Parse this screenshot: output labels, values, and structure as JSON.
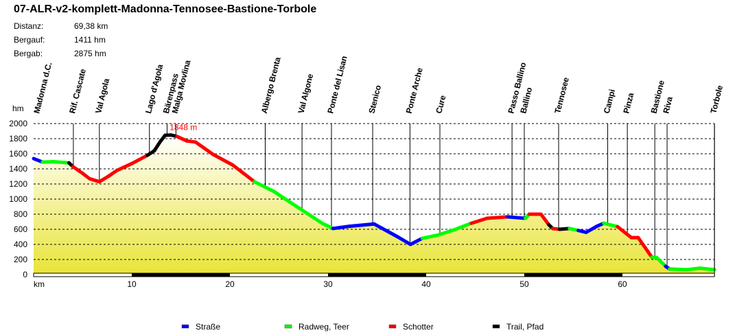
{
  "title": "07-ALR-v2-komplett-Madonna-Tennosee-Bastione-Torbole",
  "stats": [
    {
      "label": "Distanz:",
      "value": "69,38 km"
    },
    {
      "label": "Bergauf:",
      "value": " 1411 hm"
    },
    {
      "label": "Bergab:",
      "value": " 2875 hm"
    }
  ],
  "chart_data": {
    "type": "area",
    "ylabel": "hm",
    "xlabel": "km",
    "xlim": [
      0,
      69.38
    ],
    "ylim": [
      0,
      2000
    ],
    "yticks": [
      0,
      200,
      400,
      600,
      800,
      1000,
      1200,
      1400,
      1600,
      1800,
      2000
    ],
    "xticks": [
      10,
      20,
      30,
      40,
      50,
      60
    ],
    "grid": "horizontal dashed",
    "max_label": "1848 m",
    "max_point": [
      14.0,
      1848
    ],
    "surface_colors": {
      "strasse": "#0000ff",
      "radweg": "#00ff00",
      "schotter": "#ff0000",
      "trail": "#000000"
    },
    "legend": [
      {
        "key": "strasse",
        "label": "Straße"
      },
      {
        "key": "radweg",
        "label": "Radweg, Teer"
      },
      {
        "key": "schotter",
        "label": "Schotter"
      },
      {
        "key": "trail",
        "label": "Trail, Pfad"
      }
    ],
    "legend_placement": "bottom",
    "profile": [
      [
        0,
        1536,
        "strasse"
      ],
      [
        0.9,
        1490,
        "radweg"
      ],
      [
        2.0,
        1495,
        "radweg"
      ],
      [
        3.6,
        1480,
        "trail"
      ],
      [
        4.0,
        1430,
        "schotter"
      ],
      [
        5.0,
        1340,
        "schotter"
      ],
      [
        5.7,
        1270,
        "schotter"
      ],
      [
        6.7,
        1230,
        "schotter"
      ],
      [
        7.6,
        1300,
        "schotter"
      ],
      [
        8.5,
        1380,
        "schotter"
      ],
      [
        10.0,
        1470,
        "schotter"
      ],
      [
        11.6,
        1580,
        "trail"
      ],
      [
        12.3,
        1640,
        "trail"
      ],
      [
        12.9,
        1760,
        "trail"
      ],
      [
        13.4,
        1845,
        "trail"
      ],
      [
        14.0,
        1848,
        "trail"
      ],
      [
        14.6,
        1830,
        "schotter"
      ],
      [
        15.6,
        1770,
        "schotter"
      ],
      [
        16.5,
        1755,
        "schotter"
      ],
      [
        18.3,
        1590,
        "schotter"
      ],
      [
        20.3,
        1450,
        "schotter"
      ],
      [
        22.5,
        1230,
        "radweg"
      ],
      [
        24.5,
        1100,
        "radweg"
      ],
      [
        26.7,
        910,
        "radweg"
      ],
      [
        29.4,
        680,
        "radweg"
      ],
      [
        30.5,
        610,
        "strasse"
      ],
      [
        32.2,
        640,
        "strasse"
      ],
      [
        34.7,
        670,
        "strasse"
      ],
      [
        37.1,
        500,
        "strasse"
      ],
      [
        38.4,
        400,
        "strasse"
      ],
      [
        39.6,
        480,
        "radweg"
      ],
      [
        41.3,
        527,
        "radweg"
      ],
      [
        43.0,
        600,
        "radweg"
      ],
      [
        44.6,
        680,
        "schotter"
      ],
      [
        46.2,
        745,
        "schotter"
      ],
      [
        48.3,
        765,
        "strasse"
      ],
      [
        50.1,
        745,
        "radweg"
      ],
      [
        50.5,
        800,
        "schotter"
      ],
      [
        51.7,
        800,
        "schotter"
      ],
      [
        52.5,
        660,
        "trail"
      ],
      [
        52.9,
        610,
        "schotter"
      ],
      [
        53.6,
        600,
        "trail"
      ],
      [
        54.6,
        610,
        "radweg"
      ],
      [
        55.5,
        585,
        "strasse"
      ],
      [
        56.3,
        560,
        "strasse"
      ],
      [
        57.4,
        640,
        "strasse"
      ],
      [
        58.1,
        680,
        "radweg"
      ],
      [
        59.5,
        635,
        "schotter"
      ],
      [
        60.9,
        490,
        "schotter"
      ],
      [
        61.6,
        490,
        "schotter"
      ],
      [
        63.0,
        230,
        "radweg"
      ],
      [
        63.5,
        225,
        "radweg"
      ],
      [
        64.4,
        110,
        "strasse"
      ],
      [
        64.8,
        75,
        "radweg"
      ],
      [
        66.5,
        65,
        "radweg"
      ],
      [
        67.9,
        85,
        "radweg"
      ],
      [
        69.38,
        65,
        "radweg"
      ]
    ],
    "waypoints": [
      {
        "name": "Madonna d.C.",
        "km": 0
      },
      {
        "name": "Rif. Cascate",
        "km": 4.05
      },
      {
        "name": "Val Agola",
        "km": 6.7
      },
      {
        "name": "Lago d'Agola",
        "km": 11.8
      },
      {
        "name": "Bärenpass",
        "km": 13.6
      },
      {
        "name": "Malga Movlina",
        "km": 14.5
      },
      {
        "name": "Albergo Brenta",
        "km": 23.6
      },
      {
        "name": "Val Algone",
        "km": 27.35
      },
      {
        "name": "Ponte del Lisan",
        "km": 30.35
      },
      {
        "name": "Stenico",
        "km": 34.55
      },
      {
        "name": "Ponte Arche",
        "km": 38.35
      },
      {
        "name": "Cure",
        "km": 41.4
      },
      {
        "name": "Passo Ballino",
        "km": 48.75
      },
      {
        "name": "Ballino",
        "km": 50.0
      },
      {
        "name": "Tennosee",
        "km": 53.5
      },
      {
        "name": "Campi",
        "km": 58.5
      },
      {
        "name": "Pinza",
        "km": 60.5
      },
      {
        "name": "Bastione",
        "km": 63.3
      },
      {
        "name": "Riva",
        "km": 64.55
      },
      {
        "name": "Torbole",
        "km": 69.38
      }
    ]
  }
}
